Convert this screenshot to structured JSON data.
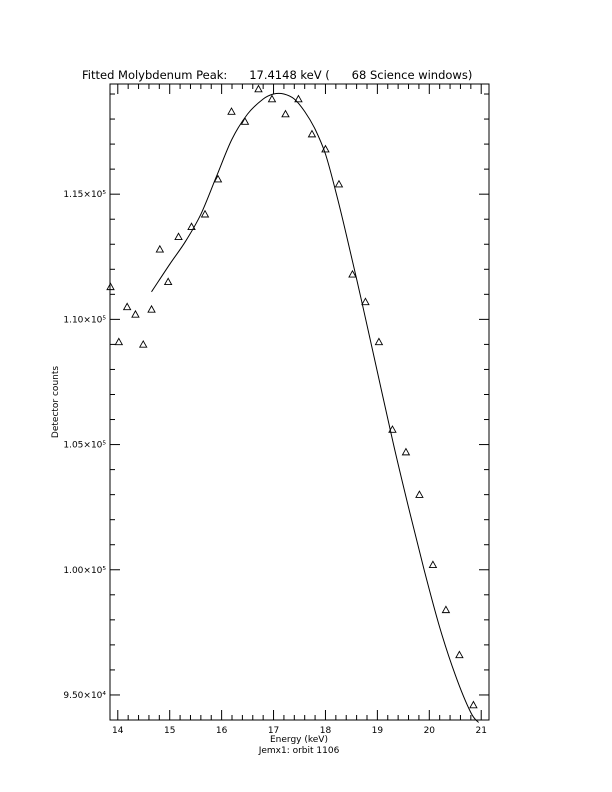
{
  "chart_data": {
    "type": "scatter",
    "title": "Fitted Molybdenum Peak:      17.4148 keV (      68 Science windows)",
    "xlabel": "Energy (keV)",
    "subtitle": "Jemx1: orbit 1106",
    "ylabel": "Detector counts",
    "xlim": [
      13.85,
      21.15
    ],
    "ylim": [
      94000,
      119400
    ],
    "x_ticks": [
      14,
      15,
      16,
      17,
      18,
      19,
      20,
      21
    ],
    "x_tick_labels": [
      "14",
      "15",
      "16",
      "17",
      "18",
      "19",
      "20",
      "21"
    ],
    "y_ticks": [
      95000,
      100000,
      105000,
      110000,
      115000
    ],
    "y_tick_labels": [
      "9.50×10⁴",
      "1.00×10⁵",
      "1.05×10⁵",
      "1.10×10⁵",
      "1.15×10⁵"
    ],
    "grid": false,
    "series": [
      {
        "kind": "points",
        "marker": "triangle",
        "x": [
          13.86,
          14.02,
          14.18,
          14.34,
          14.49,
          14.65,
          14.81,
          14.97,
          15.17,
          15.42,
          15.68,
          15.93,
          16.19,
          16.45,
          16.71,
          16.97,
          17.23,
          17.48,
          17.74,
          18.0,
          18.26,
          18.52,
          18.77,
          19.03,
          19.29,
          19.55,
          19.81,
          20.07,
          20.32,
          20.58,
          20.85
        ],
        "y": [
          111300,
          109100,
          110500,
          110200,
          109000,
          110400,
          112800,
          111500,
          113300,
          113700,
          114200,
          115600,
          118300,
          117900,
          119200,
          118800,
          118200,
          118800,
          117400,
          116800,
          115400,
          111800,
          110700,
          109100,
          105600,
          104700,
          103000,
          100200,
          98400,
          96600,
          94600
        ]
      },
      {
        "kind": "fit",
        "marker": "none",
        "x": [
          14.65,
          15.0,
          15.3,
          15.6,
          15.9,
          16.2,
          16.5,
          16.8,
          17.0,
          17.2,
          17.4,
          17.6,
          17.8,
          18.0,
          18.2,
          18.4,
          18.7,
          19.0,
          19.3,
          19.6,
          19.9,
          20.2,
          20.5,
          20.8,
          20.95
        ],
        "y": [
          111100,
          112200,
          113100,
          114200,
          115700,
          117200,
          118200,
          118800,
          119000,
          119000,
          118800,
          118300,
          117600,
          116600,
          115100,
          113400,
          110700,
          107900,
          105100,
          102500,
          100000,
          97700,
          95800,
          94300,
          93900
        ]
      }
    ]
  }
}
